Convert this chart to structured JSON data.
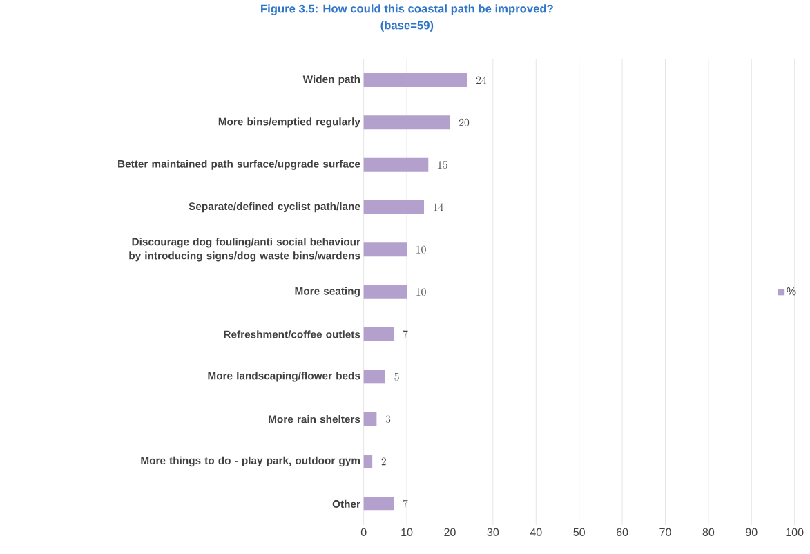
{
  "chart_data": {
    "type": "bar",
    "orientation": "horizontal",
    "title": "Figure 3.5: How could this coastal path be improved?",
    "subtitle": "(base=59)",
    "categories": [
      "Widen path",
      "More bins/emptied regularly",
      "Better maintained path surface/upgrade surface",
      "Separate/defined cyclist path/lane",
      "Discourage dog fouling/anti social behaviour by introducing signs/dog waste bins/wardens",
      "More seating",
      "Refreshment/coffee outlets",
      "More landscaping/flower beds",
      "More rain shelters",
      "More things to do - play park, outdoor gym",
      "Other"
    ],
    "series": [
      {
        "name": "%",
        "color": "#b4a0cc",
        "values": [
          24,
          20,
          15,
          14,
          10,
          10,
          7,
          5,
          3,
          2,
          7
        ]
      }
    ],
    "xlim": [
      0,
      100
    ],
    "xticks": [
      0,
      10,
      20,
      30,
      40,
      50,
      60,
      70,
      80,
      90,
      100
    ],
    "grid": "x",
    "legend": "right",
    "data_labels": true
  }
}
